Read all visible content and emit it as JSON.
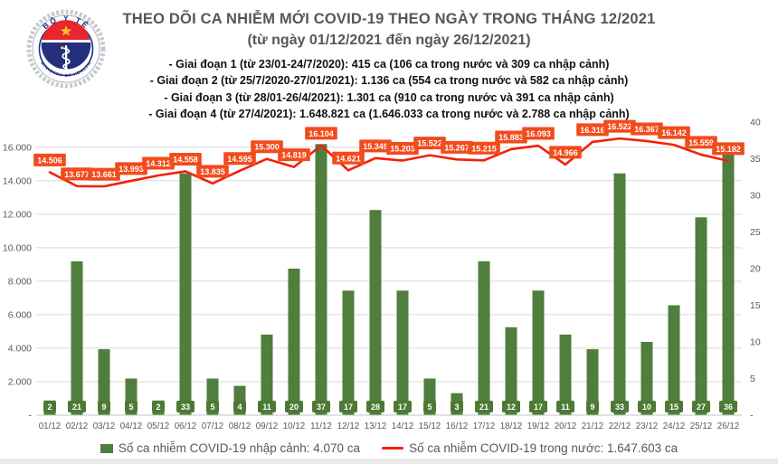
{
  "header": {
    "title": "THEO DÕI CA NHIỄM MỚI COVID-19 THEO NGÀY TRONG THÁNG 12/2021",
    "subtitle": "(từ ngày 01/12/2021 đến ngày 26/12/2021)",
    "bullets": [
      "- Giai đoạn 1 (từ 23/01-24/7/2020): 415 ca (106 ca trong nước và 309 ca nhập cảnh)",
      "- Giai đoạn 2 (từ 25/7/2020-27/01/2021): 1.136 ca (554 ca trong nước và 582 ca nhập cảnh)",
      "- Giai đoạn 3 (từ 28/01-26/4/2021): 1.301 ca (910 ca trong nước và 391 ca nhập cảnh)",
      "- Giai đoạn 4 (từ 27/4/2021): 1.648.821 ca (1.646.033 ca trong nước và 2.788 ca nhập cảnh)"
    ]
  },
  "logo": {
    "top_text": "BỘ Y TẾ",
    "bottom_text": "MINISTRY OF HEALTH"
  },
  "legend": {
    "bars_label": "Số ca nhiễm COVID-19 nhập cảnh: 4.070 ca",
    "line_label": "Số ca nhiễm COVID-19 trong nước: 1.647.603 ca"
  },
  "colors": {
    "bar": "#4f7e3d",
    "bar_label_bg": "#4c7a33",
    "line": "#f42008",
    "line_label_bg": "#f24b1c",
    "label_text": "#ffffff",
    "axis_text": "#595959",
    "grid": "#d9d9d9",
    "axis_line": "#c6c6c6",
    "logo_navy": "#232e7d",
    "logo_red": "#e8262d",
    "logo_gold": "#f8c622"
  },
  "chart_data": {
    "type": "combo_bar_line",
    "categories": [
      "01/12",
      "02/12",
      "03/12",
      "04/12",
      "05/12",
      "06/12",
      "07/12",
      "08/12",
      "09/12",
      "10/12",
      "11/12",
      "12/12",
      "13/12",
      "14/12",
      "15/12",
      "16/12",
      "17/12",
      "18/12",
      "19/12",
      "20/12",
      "21/12",
      "22/12",
      "23/12",
      "24/12",
      "25/12",
      "26/12"
    ],
    "series": [
      {
        "name": "Số ca nhiễm COVID-19 nhập cảnh",
        "type": "bar",
        "axis": "right",
        "values": [
          2,
          21,
          9,
          5,
          2,
          33,
          5,
          4,
          11,
          20,
          37,
          17,
          28,
          17,
          5,
          3,
          21,
          12,
          17,
          11,
          9,
          33,
          10,
          15,
          27,
          36
        ]
      },
      {
        "name": "Số ca nhiễm COVID-19 trong nước",
        "type": "line",
        "axis": "left",
        "values": [
          14506,
          13677,
          13661,
          13993,
          14312,
          14558,
          13835,
          14595,
          15300,
          14819,
          16104,
          14621,
          15349,
          15203,
          15522,
          15267,
          15215,
          15883,
          16093,
          14966,
          16316,
          16522,
          16367,
          16142,
          15559,
          15182
        ]
      }
    ],
    "left_axis": {
      "max": 17500,
      "tick_values": [
        16000,
        14000,
        12000,
        10000,
        8000,
        6000,
        4000,
        2000,
        0
      ],
      "tick_labels": [
        "16.000",
        "14.000",
        "12.000",
        "10.000",
        "8.000",
        "6.000",
        "4.000",
        "2.000",
        "-"
      ]
    },
    "right_axis": {
      "max": 40,
      "tick_values": [
        40,
        35,
        30,
        25,
        20,
        15,
        10,
        5,
        0
      ],
      "tick_labels": [
        "40",
        "35",
        "30",
        "25",
        "20",
        "15",
        "10",
        "5",
        "-"
      ]
    },
    "grid": true,
    "legend_position": "bottom",
    "title": "THEO DÕI CA NHIỄM MỚI COVID-19 THEO NGÀY TRONG THÁNG 12/2021"
  }
}
